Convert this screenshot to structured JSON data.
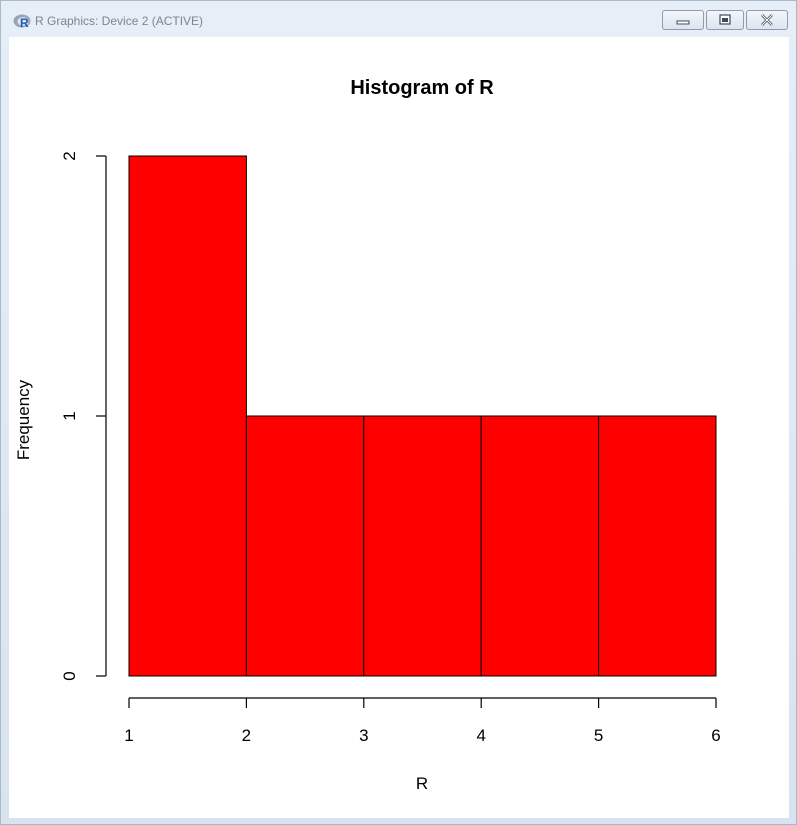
{
  "window": {
    "title": "R Graphics: Device 2 (ACTIVE)"
  },
  "chart_data": {
    "type": "bar",
    "title": "Histogram of R",
    "xlabel": "R",
    "ylabel": "Frequency",
    "bins": [
      [
        1,
        2
      ],
      [
        2,
        3
      ],
      [
        3,
        4
      ],
      [
        4,
        5
      ],
      [
        5,
        6
      ]
    ],
    "values": [
      2,
      1,
      1,
      1,
      1
    ],
    "x_ticks": [
      1,
      2,
      3,
      4,
      5,
      6
    ],
    "y_ticks": [
      0,
      1,
      2
    ],
    "xlim": [
      1,
      6
    ],
    "ylim": [
      0,
      2
    ],
    "grid": false,
    "bar_color": "#ff0000",
    "border_color": "#000000"
  }
}
